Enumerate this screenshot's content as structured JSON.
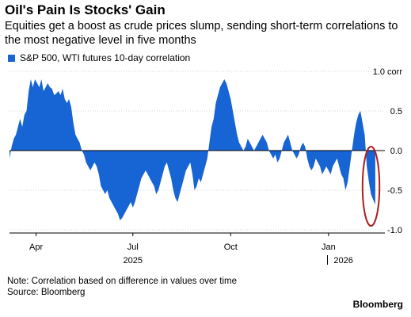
{
  "header": {
    "title": "Oil's Pain Is Stocks' Gain",
    "subtitle": "Equities get a boost as crude prices slump, sending short-term correlations to the most negative level in five months"
  },
  "legend": {
    "label": "S&P 500, WTI futures 10-day correlation",
    "color": "#1764d4"
  },
  "footer": {
    "note": "Note: Correlation based on difference in values over time",
    "source": "Source: Bloomberg",
    "brand": "Bloomberg"
  },
  "chart_data": {
    "type": "area",
    "baseline": 0,
    "fill_color": "#1764d4",
    "ylim": [
      -1.0,
      1.0
    ],
    "y_ticks": [
      {
        "value": 1.0,
        "label": "1.0 corr"
      },
      {
        "value": 0.5,
        "label": "0.5"
      },
      {
        "value": 0.0,
        "label": "0.0"
      },
      {
        "value": -0.5,
        "label": "-0.5"
      },
      {
        "value": -1.0,
        "label": "-1.0"
      }
    ],
    "grid": true,
    "x_range": [
      "2025-03-07",
      "2026-02-23"
    ],
    "x_ticks": [
      {
        "date": "2025-04-01",
        "label": "Apr"
      },
      {
        "date": "2025-07-01",
        "label": "Jul"
      },
      {
        "date": "2025-10-01",
        "label": "Oct"
      },
      {
        "date": "2026-01-01",
        "label": "Jan"
      }
    ],
    "year_labels": [
      {
        "date": "2025-07-01",
        "label": "2025"
      },
      {
        "date": "2026-01-15",
        "label": "2026"
      }
    ],
    "year_divider": "2025-12-31",
    "annotation": {
      "type": "ellipse",
      "color": "#b01c1c",
      "x_from": "2026-02-02",
      "x_to": "2026-02-18",
      "y_from": -0.95,
      "y_to": 0.05
    },
    "series": [
      {
        "values": [
          [
            "2025-03-07",
            -0.1
          ],
          [
            "2025-03-09",
            0.05
          ],
          [
            "2025-03-11",
            0.15
          ],
          [
            "2025-03-13",
            0.2
          ],
          [
            "2025-03-15",
            0.3
          ],
          [
            "2025-03-17",
            0.4
          ],
          [
            "2025-03-19",
            0.3
          ],
          [
            "2025-03-21",
            0.45
          ],
          [
            "2025-03-23",
            0.5
          ],
          [
            "2025-03-25",
            0.75
          ],
          [
            "2025-03-27",
            0.9
          ],
          [
            "2025-03-29",
            0.8
          ],
          [
            "2025-03-31",
            0.9
          ],
          [
            "2025-04-02",
            0.85
          ],
          [
            "2025-04-04",
            0.8
          ],
          [
            "2025-04-06",
            0.9
          ],
          [
            "2025-04-08",
            0.75
          ],
          [
            "2025-04-10",
            0.8
          ],
          [
            "2025-04-12",
            0.85
          ],
          [
            "2025-04-14",
            0.8
          ],
          [
            "2025-04-16",
            0.78
          ],
          [
            "2025-04-18",
            0.7
          ],
          [
            "2025-04-20",
            0.72
          ],
          [
            "2025-04-22",
            0.75
          ],
          [
            "2025-04-24",
            0.7
          ],
          [
            "2025-04-26",
            0.78
          ],
          [
            "2025-04-28",
            0.65
          ],
          [
            "2025-04-30",
            0.6
          ],
          [
            "2025-05-02",
            0.65
          ],
          [
            "2025-05-04",
            0.55
          ],
          [
            "2025-05-06",
            0.35
          ],
          [
            "2025-05-08",
            0.2
          ],
          [
            "2025-05-10",
            0.15
          ],
          [
            "2025-05-12",
            0.1
          ],
          [
            "2025-05-14",
            0.0
          ],
          [
            "2025-05-16",
            -0.05
          ],
          [
            "2025-05-18",
            -0.15
          ],
          [
            "2025-05-20",
            -0.2
          ],
          [
            "2025-05-22",
            -0.25
          ],
          [
            "2025-05-24",
            -0.2
          ],
          [
            "2025-05-26",
            -0.15
          ],
          [
            "2025-05-28",
            -0.2
          ],
          [
            "2025-05-30",
            -0.3
          ],
          [
            "2025-06-01",
            -0.45
          ],
          [
            "2025-06-03",
            -0.5
          ],
          [
            "2025-06-05",
            -0.55
          ],
          [
            "2025-06-07",
            -0.5
          ],
          [
            "2025-06-09",
            -0.6
          ],
          [
            "2025-06-11",
            -0.65
          ],
          [
            "2025-06-13",
            -0.7
          ],
          [
            "2025-06-15",
            -0.75
          ],
          [
            "2025-06-17",
            -0.8
          ],
          [
            "2025-06-19",
            -0.88
          ],
          [
            "2025-06-21",
            -0.85
          ],
          [
            "2025-06-23",
            -0.8
          ],
          [
            "2025-06-25",
            -0.75
          ],
          [
            "2025-06-27",
            -0.7
          ],
          [
            "2025-06-29",
            -0.65
          ],
          [
            "2025-07-01",
            -0.72
          ],
          [
            "2025-07-03",
            -0.65
          ],
          [
            "2025-07-05",
            -0.55
          ],
          [
            "2025-07-07",
            -0.45
          ],
          [
            "2025-07-09",
            -0.35
          ],
          [
            "2025-07-11",
            -0.3
          ],
          [
            "2025-07-13",
            -0.25
          ],
          [
            "2025-07-15",
            -0.3
          ],
          [
            "2025-07-17",
            -0.35
          ],
          [
            "2025-07-19",
            -0.4
          ],
          [
            "2025-07-21",
            -0.45
          ],
          [
            "2025-07-23",
            -0.55
          ],
          [
            "2025-07-25",
            -0.5
          ],
          [
            "2025-07-27",
            -0.4
          ],
          [
            "2025-07-29",
            -0.3
          ],
          [
            "2025-07-31",
            -0.2
          ],
          [
            "2025-08-02",
            -0.15
          ],
          [
            "2025-08-04",
            -0.25
          ],
          [
            "2025-08-06",
            -0.35
          ],
          [
            "2025-08-08",
            -0.5
          ],
          [
            "2025-08-10",
            -0.6
          ],
          [
            "2025-08-12",
            -0.65
          ],
          [
            "2025-08-14",
            -0.55
          ],
          [
            "2025-08-16",
            -0.45
          ],
          [
            "2025-08-18",
            -0.35
          ],
          [
            "2025-08-20",
            -0.25
          ],
          [
            "2025-08-22",
            -0.2
          ],
          [
            "2025-08-24",
            -0.15
          ],
          [
            "2025-08-26",
            -0.3
          ],
          [
            "2025-08-28",
            -0.5
          ],
          [
            "2025-08-30",
            -0.45
          ],
          [
            "2025-09-01",
            -0.35
          ],
          [
            "2025-09-03",
            -0.4
          ],
          [
            "2025-09-05",
            -0.3
          ],
          [
            "2025-09-07",
            -0.2
          ],
          [
            "2025-09-09",
            -0.1
          ],
          [
            "2025-09-11",
            0.1
          ],
          [
            "2025-09-13",
            0.3
          ],
          [
            "2025-09-15",
            0.4
          ],
          [
            "2025-09-17",
            0.6
          ],
          [
            "2025-09-19",
            0.7
          ],
          [
            "2025-09-21",
            0.8
          ],
          [
            "2025-09-23",
            0.85
          ],
          [
            "2025-09-25",
            0.9
          ],
          [
            "2025-09-27",
            0.85
          ],
          [
            "2025-09-29",
            0.75
          ],
          [
            "2025-10-01",
            0.65
          ],
          [
            "2025-10-03",
            0.5
          ],
          [
            "2025-10-05",
            0.35
          ],
          [
            "2025-10-07",
            0.2
          ],
          [
            "2025-10-09",
            0.1
          ],
          [
            "2025-10-11",
            0.05
          ],
          [
            "2025-10-13",
            0.0
          ],
          [
            "2025-10-15",
            0.05
          ],
          [
            "2025-10-17",
            0.15
          ],
          [
            "2025-10-19",
            0.1
          ],
          [
            "2025-10-21",
            0.05
          ],
          [
            "2025-10-23",
            0.0
          ],
          [
            "2025-10-25",
            0.05
          ],
          [
            "2025-10-27",
            0.1
          ],
          [
            "2025-10-29",
            0.15
          ],
          [
            "2025-10-31",
            0.2
          ],
          [
            "2025-11-02",
            0.15
          ],
          [
            "2025-11-04",
            0.1
          ],
          [
            "2025-11-06",
            0.0
          ],
          [
            "2025-11-08",
            -0.05
          ],
          [
            "2025-11-10",
            -0.1
          ],
          [
            "2025-11-12",
            -0.05
          ],
          [
            "2025-11-14",
            -0.15
          ],
          [
            "2025-11-16",
            -0.1
          ],
          [
            "2025-11-18",
            0.0
          ],
          [
            "2025-11-20",
            0.1
          ],
          [
            "2025-11-22",
            0.15
          ],
          [
            "2025-11-24",
            0.2
          ],
          [
            "2025-11-26",
            0.1
          ],
          [
            "2025-11-28",
            0.0
          ],
          [
            "2025-11-30",
            -0.05
          ],
          [
            "2025-12-02",
            -0.1
          ],
          [
            "2025-12-04",
            -0.05
          ],
          [
            "2025-12-06",
            0.05
          ],
          [
            "2025-12-08",
            0.1
          ],
          [
            "2025-12-10",
            0.05
          ],
          [
            "2025-12-12",
            -0.1
          ],
          [
            "2025-12-14",
            -0.2
          ],
          [
            "2025-12-16",
            -0.25
          ],
          [
            "2025-12-18",
            -0.2
          ],
          [
            "2025-12-20",
            -0.1
          ],
          [
            "2025-12-22",
            -0.15
          ],
          [
            "2025-12-24",
            -0.2
          ],
          [
            "2025-12-26",
            -0.3
          ],
          [
            "2025-12-28",
            -0.25
          ],
          [
            "2025-12-30",
            -0.2
          ],
          [
            "2026-01-01",
            -0.25
          ],
          [
            "2026-01-03",
            -0.3
          ],
          [
            "2026-01-05",
            -0.2
          ],
          [
            "2026-01-07",
            -0.15
          ],
          [
            "2026-01-09",
            -0.1
          ],
          [
            "2026-01-11",
            -0.2
          ],
          [
            "2026-01-13",
            -0.3
          ],
          [
            "2026-01-15",
            -0.35
          ],
          [
            "2026-01-17",
            -0.5
          ],
          [
            "2026-01-19",
            -0.4
          ],
          [
            "2026-01-21",
            -0.2
          ],
          [
            "2026-01-23",
            0.0
          ],
          [
            "2026-01-25",
            0.2
          ],
          [
            "2026-01-27",
            0.35
          ],
          [
            "2026-01-29",
            0.45
          ],
          [
            "2026-01-31",
            0.5
          ],
          [
            "2026-02-02",
            0.35
          ],
          [
            "2026-02-04",
            0.2
          ],
          [
            "2026-02-06",
            -0.2
          ],
          [
            "2026-02-08",
            -0.4
          ],
          [
            "2026-02-10",
            -0.55
          ],
          [
            "2026-02-12",
            -0.62
          ],
          [
            "2026-02-14",
            -0.68
          ]
        ]
      }
    ]
  }
}
